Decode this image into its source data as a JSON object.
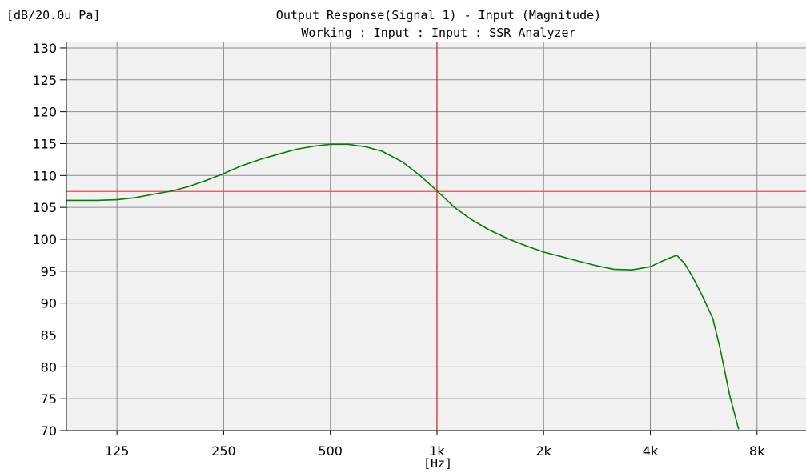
{
  "chart_data": {
    "type": "line",
    "title": "Output Response(Signal 1) - Input (Magnitude)",
    "subtitle": "Working : Input : Input : SSR Analyzer",
    "ylabel": "[dB/20.0u Pa]",
    "xlabel": "[Hz]",
    "x_scale": "log",
    "xlim": [
      90,
      11000
    ],
    "ylim": [
      70,
      131
    ],
    "x_ticks": [
      {
        "value": 125,
        "label": "125"
      },
      {
        "value": 250,
        "label": "250"
      },
      {
        "value": 500,
        "label": "500"
      },
      {
        "value": 1000,
        "label": "1k"
      },
      {
        "value": 2000,
        "label": "2k"
      },
      {
        "value": 4000,
        "label": "4k"
      },
      {
        "value": 8000,
        "label": "8k"
      }
    ],
    "y_ticks": [
      {
        "value": 70,
        "label": "70"
      },
      {
        "value": 75,
        "label": "75"
      },
      {
        "value": 80,
        "label": "80"
      },
      {
        "value": 85,
        "label": "85"
      },
      {
        "value": 90,
        "label": "90"
      },
      {
        "value": 95,
        "label": "95"
      },
      {
        "value": 100,
        "label": "100"
      },
      {
        "value": 105,
        "label": "105"
      },
      {
        "value": 110,
        "label": "110"
      },
      {
        "value": 115,
        "label": "115"
      },
      {
        "value": 120,
        "label": "120"
      },
      {
        "value": 125,
        "label": "125"
      },
      {
        "value": 130,
        "label": "130"
      }
    ],
    "grid": true,
    "cursor": {
      "x": 1000,
      "y": 107.5
    },
    "series": [
      {
        "color": "#008000",
        "x": [
          90,
          110,
          125,
          140,
          160,
          180,
          200,
          225,
          250,
          280,
          320,
          360,
          400,
          450,
          500,
          560,
          630,
          700,
          800,
          900,
          1000,
          1120,
          1250,
          1400,
          1600,
          1800,
          2000,
          2240,
          2500,
          2800,
          3150,
          3550,
          4000,
          4250,
          4500,
          4750,
          5000,
          5300,
          5600,
          6000,
          6300,
          6700,
          7100
        ],
        "values": [
          106.1,
          106.1,
          106.2,
          106.5,
          107.1,
          107.6,
          108.3,
          109.3,
          110.3,
          111.5,
          112.6,
          113.4,
          114.1,
          114.6,
          114.9,
          114.9,
          114.5,
          113.8,
          112.1,
          109.9,
          107.6,
          105.0,
          103.1,
          101.5,
          100.0,
          98.9,
          98.0,
          97.3,
          96.6,
          95.9,
          95.3,
          95.2,
          95.7,
          96.4,
          97.0,
          97.5,
          96.2,
          93.8,
          91.2,
          87.6,
          82.8,
          75.5,
          70.2
        ]
      }
    ]
  }
}
